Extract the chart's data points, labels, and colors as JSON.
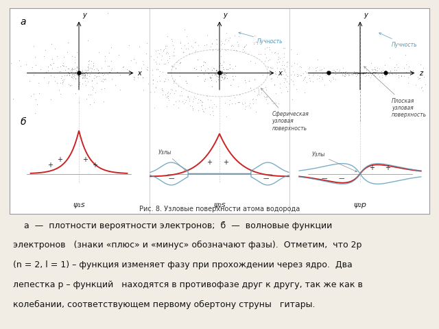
{
  "background_color": "#f2ede4",
  "box_bg": "#ffffff",
  "title_fig": "Рис. 8. Узловые поверхности атома водорода",
  "label_a": "а",
  "label_b": "б",
  "psi_1s": "ψ₁s",
  "psi_2s": "ψ₂s",
  "psi_2p": "ψ₂p",
  "ann_sfer": "Сферическая\nузловая\nповерхность",
  "ann_plos": "Плоская\nузловая\nповерхность",
  "ann_puch": "Пучность",
  "ann_uzly": "Узлы",
  "dot_color": "#555555",
  "red_color": "#cc2222",
  "blue_color": "#5599bb",
  "black": "#000000",
  "body_line1": "    а  —  плотности вероятности электронов;  б̆  —  волновые функции электронов   (знаки «плюс» и «минус» обозначают фазы).  Отметим,  что 2р",
  "body_line2": "(n = 2, l = 1) – функция изменяет фазу при прохождении через ядро.  Два",
  "body_line3": "лепестка р – функций   находятся в противофазе друг к другу, так же как в",
  "body_line4": "колебании, соответствующем первому обертону струны   гитары."
}
